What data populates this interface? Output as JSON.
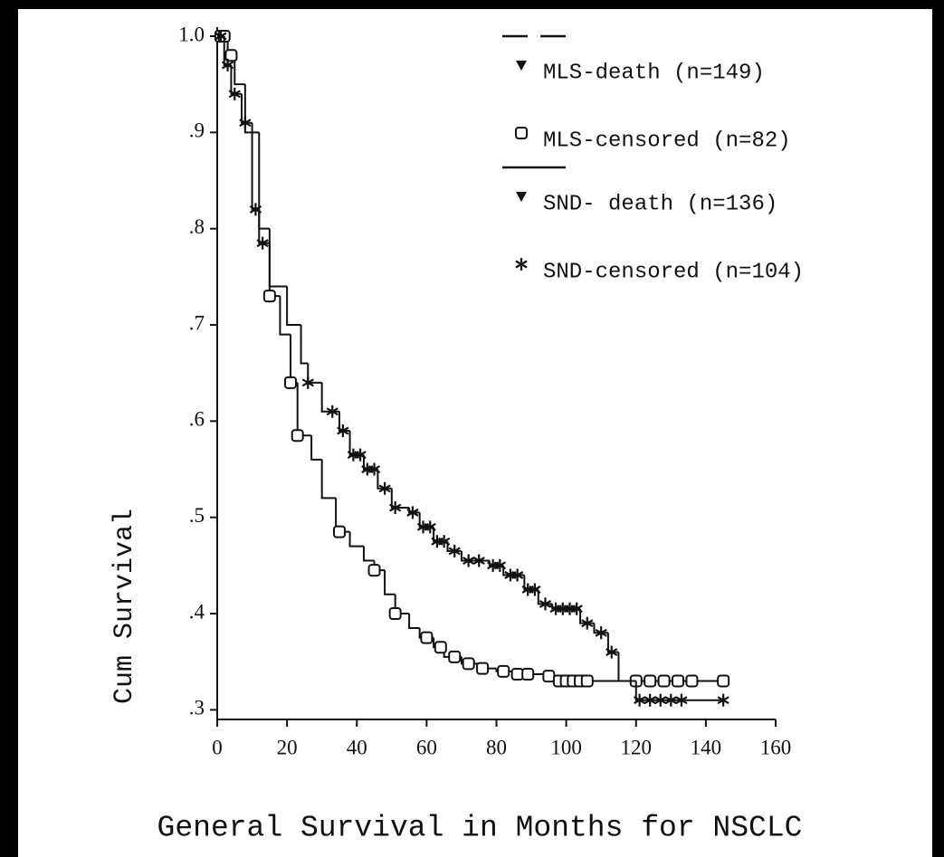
{
  "chart_data": {
    "type": "step",
    "xlabel": "General Survival in Months for NSCLC",
    "ylabel": "Cum Survival",
    "xlim": [
      0,
      160
    ],
    "xticks": [
      0,
      20,
      40,
      60,
      80,
      100,
      120,
      140,
      160
    ],
    "ylim": [
      0.29,
      1.0
    ],
    "yticks": [
      {
        "value": 1.0,
        "label": "1.0"
      },
      {
        "value": 0.9,
        "label": ".9"
      },
      {
        "value": 0.8,
        "label": ".8"
      },
      {
        "value": 0.7,
        "label": ".7"
      },
      {
        "value": 0.6,
        "label": ".6"
      },
      {
        "value": 0.5,
        "label": ".5"
      },
      {
        "value": 0.4,
        "label": ".4"
      },
      {
        "value": 0.3,
        "label": ".3"
      }
    ],
    "color": "#111111",
    "series": [
      {
        "death_label": "MLS-death (n=149)",
        "censored_label": "MLS-censored (n=82)",
        "line_style": "dashed",
        "censored_marker": "square",
        "x": [
          0,
          3,
          5,
          8,
          12,
          15,
          18,
          21,
          23,
          27,
          30,
          34,
          38,
          42,
          45,
          48,
          51,
          55,
          58,
          62,
          65,
          70,
          75,
          80,
          85,
          95,
          100,
          145
        ],
        "values": [
          1.0,
          0.98,
          0.95,
          0.9,
          0.8,
          0.73,
          0.69,
          0.64,
          0.585,
          0.56,
          0.52,
          0.485,
          0.47,
          0.455,
          0.445,
          0.42,
          0.4,
          0.385,
          0.375,
          0.365,
          0.355,
          0.348,
          0.343,
          0.34,
          0.337,
          0.335,
          0.33,
          0.33
        ],
        "censored": {
          "x": [
            1,
            2,
            4,
            15,
            21,
            23,
            35,
            45,
            51,
            60,
            64,
            68,
            72,
            76,
            82,
            86,
            89,
            95,
            98,
            100,
            102,
            104,
            106,
            120,
            124,
            128,
            132,
            136,
            145
          ],
          "values": [
            1.0,
            1.0,
            0.98,
            0.73,
            0.64,
            0.585,
            0.485,
            0.445,
            0.4,
            0.375,
            0.365,
            0.355,
            0.348,
            0.343,
            0.34,
            0.337,
            0.337,
            0.335,
            0.33,
            0.33,
            0.33,
            0.33,
            0.33,
            0.33,
            0.33,
            0.33,
            0.33,
            0.33,
            0.33
          ]
        }
      },
      {
        "death_label": "SND- death (n=136)",
        "censored_label": "SND-censored (n=104)",
        "line_style": "solid",
        "censored_marker": "star",
        "x": [
          0,
          2,
          4,
          7,
          10,
          12,
          15,
          20,
          24,
          26,
          30,
          35,
          38,
          42,
          46,
          50,
          55,
          58,
          62,
          66,
          70,
          78,
          82,
          88,
          92,
          96,
          104,
          108,
          112,
          115,
          120,
          145
        ],
        "values": [
          1.0,
          0.97,
          0.94,
          0.91,
          0.82,
          0.785,
          0.74,
          0.7,
          0.66,
          0.64,
          0.61,
          0.59,
          0.565,
          0.55,
          0.53,
          0.51,
          0.505,
          0.49,
          0.475,
          0.465,
          0.455,
          0.45,
          0.44,
          0.425,
          0.41,
          0.405,
          0.39,
          0.38,
          0.36,
          0.33,
          0.31,
          0.31
        ],
        "censored": {
          "x": [
            1,
            3,
            5,
            8,
            11,
            13,
            26,
            33,
            36,
            39,
            41,
            43,
            45,
            48,
            51,
            56,
            59,
            61,
            63,
            65,
            68,
            72,
            75,
            79,
            81,
            84,
            86,
            89,
            91,
            94,
            97,
            99,
            101,
            103,
            106,
            110,
            113,
            121,
            124,
            127,
            130,
            133,
            145
          ],
          "values": [
            1.0,
            0.97,
            0.94,
            0.91,
            0.82,
            0.785,
            0.64,
            0.61,
            0.59,
            0.565,
            0.565,
            0.55,
            0.55,
            0.53,
            0.51,
            0.505,
            0.49,
            0.49,
            0.475,
            0.475,
            0.465,
            0.455,
            0.455,
            0.45,
            0.45,
            0.44,
            0.44,
            0.425,
            0.425,
            0.41,
            0.405,
            0.405,
            0.405,
            0.405,
            0.39,
            0.38,
            0.36,
            0.31,
            0.31,
            0.31,
            0.31,
            0.31,
            0.31
          ]
        }
      }
    ]
  }
}
